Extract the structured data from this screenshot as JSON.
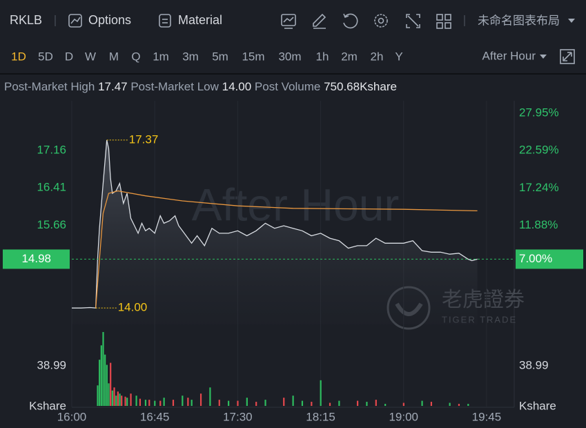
{
  "toolbar": {
    "symbol": "RKLB",
    "options": "Options",
    "material": "Material",
    "layout_name": "未命名图表布局"
  },
  "periods": [
    "1D",
    "5D",
    "D",
    "W",
    "M",
    "Q",
    "1m",
    "3m",
    "5m",
    "15m",
    "30m",
    "1h",
    "2m",
    "2h",
    "Y"
  ],
  "active_period": 0,
  "session": "After Hour",
  "stats": [
    {
      "label": "Post-Market High",
      "value": "17.47"
    },
    {
      "label": "Post-Market Low",
      "value": "14.00"
    },
    {
      "label": "Post Volume",
      "value": "750.68Kshare"
    }
  ],
  "watermark_logo": {
    "cn": "老虎證券",
    "en": "TIGER TRADE"
  },
  "chart_data": {
    "type": "line",
    "watermark": "After Hour",
    "xlim": [
      "16:00",
      "20:00"
    ],
    "xticks": [
      "16:00",
      "16:45",
      "17:30",
      "18:15",
      "19:00",
      "19:45"
    ],
    "ylim": [
      13.67,
      18.13
    ],
    "yticks": [
      15.66,
      16.41,
      17.16
    ],
    "y2lim": [
      -2.33,
      29.54
    ],
    "y2ticks": [
      {
        "value": 27.95,
        "label": "27.95%"
      },
      {
        "value": 22.59,
        "label": "22.59%"
      },
      {
        "value": 17.24,
        "label": "17.24%"
      },
      {
        "value": 11.88,
        "label": "11.88%"
      },
      {
        "value": 7.0,
        "label": "7.00%"
      }
    ],
    "last": 14.98,
    "last_y2": 7.0,
    "last_color": "#2dbd62",
    "series": [
      {
        "color": "#d9dde3",
        "x": [
          "16:00",
          "16:05",
          "16:10",
          "16:13",
          "16:14",
          "16:15",
          "16:17",
          "16:19",
          "16:20",
          "16:21",
          "16:22",
          "16:24",
          "16:26",
          "16:28",
          "16:30",
          "16:32",
          "16:34",
          "16:36",
          "16:38",
          "16:40",
          "16:42",
          "16:45",
          "16:48",
          "16:50",
          "16:53",
          "16:56",
          "16:58",
          "17:00",
          "17:05",
          "17:08",
          "17:12",
          "17:16",
          "17:20",
          "17:25",
          "17:30",
          "17:35",
          "17:40",
          "17:45",
          "17:50",
          "17:55",
          "18:00",
          "18:05",
          "18:10",
          "18:15",
          "18:20",
          "18:25",
          "18:30",
          "18:35",
          "18:40",
          "18:45",
          "18:50",
          "18:55",
          "19:00",
          "19:05",
          "19:10",
          "19:15",
          "19:20",
          "19:25",
          "19:30",
          "19:35",
          "19:37",
          "19:40"
        ],
        "values": [
          14.0,
          14.0,
          14.01,
          14.0,
          14.98,
          15.6,
          16.5,
          17.37,
          17.2,
          16.6,
          16.3,
          16.35,
          16.5,
          16.1,
          16.3,
          15.8,
          15.65,
          15.5,
          15.7,
          15.55,
          15.6,
          15.5,
          15.85,
          15.7,
          15.75,
          15.85,
          15.65,
          15.55,
          15.3,
          15.45,
          15.25,
          15.6,
          15.5,
          15.5,
          15.55,
          15.45,
          15.55,
          15.7,
          15.6,
          15.65,
          15.6,
          15.55,
          15.45,
          15.5,
          15.4,
          15.35,
          15.2,
          15.25,
          15.25,
          15.4,
          15.3,
          15.3,
          15.3,
          15.35,
          15.15,
          15.12,
          15.12,
          15.08,
          15.1,
          14.98,
          14.95,
          14.98
        ]
      },
      {
        "color": "#e9973f",
        "x": [
          "16:13",
          "16:15",
          "16:17",
          "16:20",
          "16:25",
          "16:40",
          "17:00",
          "17:30",
          "18:00",
          "18:30",
          "19:00",
          "19:40"
        ],
        "values": [
          14.0,
          14.98,
          15.9,
          16.3,
          16.35,
          16.25,
          16.15,
          16.05,
          16.0,
          15.99,
          15.98,
          15.95
        ]
      }
    ],
    "annotations": [
      {
        "x": "16:19",
        "value": 17.37
      },
      {
        "x": "16:13",
        "value": 14,
        "label": "14.00"
      }
    ],
    "annotation_color": "#f5c518",
    "volume": {
      "type": "bar",
      "ylim": [
        0,
        74
      ],
      "yticks": [
        38.99
      ],
      "unit": "Kshare",
      "series": [
        {
          "color": "#2ebd5f",
          "x": [
            "16:14",
            "16:15",
            "16:16",
            "16:17",
            "16:18",
            "16:19",
            "16:20",
            "16:22",
            "16:24",
            "16:26",
            "16:30",
            "16:35",
            "16:40",
            "16:45",
            "16:50",
            "17:00",
            "17:05",
            "17:15",
            "17:25",
            "17:35",
            "17:45",
            "18:00",
            "18:05",
            "18:15",
            "18:25",
            "18:40",
            "18:50",
            "19:10",
            "19:25",
            "19:35"
          ],
          "values": [
            20,
            45,
            59,
            72,
            50,
            40,
            22,
            15,
            10,
            12,
            8,
            10,
            6,
            5,
            8,
            10,
            6,
            18,
            5,
            8,
            6,
            10,
            5,
            25,
            5,
            4,
            2,
            5,
            3,
            2
          ]
        },
        {
          "color": "#e5484d",
          "x": [
            "16:21",
            "16:23",
            "16:25",
            "16:27",
            "16:29",
            "16:32",
            "16:37",
            "16:42",
            "16:48",
            "16:55",
            "17:03",
            "17:10",
            "17:20",
            "17:30",
            "17:40",
            "17:55",
            "18:10",
            "18:20",
            "18:35",
            "18:45",
            "19:00",
            "19:15",
            "19:30"
          ],
          "values": [
            42,
            18,
            14,
            10,
            9,
            12,
            7,
            6,
            5,
            6,
            8,
            12,
            6,
            5,
            4,
            8,
            4,
            3,
            5,
            6,
            3,
            4,
            2
          ]
        }
      ]
    }
  }
}
